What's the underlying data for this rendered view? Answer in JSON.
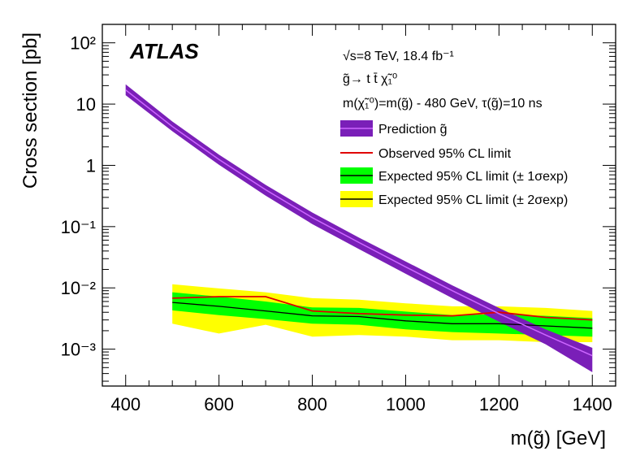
{
  "chart_data": {
    "type": "line",
    "brand": "ATLAS",
    "info_lines": [
      "√s=8 TeV, 18.4 fb⁻¹",
      "g̃→ t t̄ χ̃₁⁰",
      "m(χ̃₁⁰)=m(g̃) - 480 GeV, τ(g̃)=10 ns"
    ],
    "xlabel": "m(g̃) [GeV]",
    "ylabel": "Cross section [pb]",
    "xlim": [
      350,
      1450
    ],
    "ylim": [
      0.00025,
      200
    ],
    "yscale": "log",
    "x_ticks": [
      400,
      600,
      800,
      1000,
      1200,
      1400
    ],
    "y_ticks": [
      {
        "value": 100,
        "label": "10²"
      },
      {
        "value": 10,
        "label": "10"
      },
      {
        "value": 1,
        "label": "1"
      },
      {
        "value": 0.1,
        "label": "10⁻¹"
      },
      {
        "value": 0.01,
        "label": "10⁻²"
      },
      {
        "value": 0.001,
        "label": "10⁻³"
      }
    ],
    "colors": {
      "prediction_band": "#7a1fb8",
      "prediction_line": "#cc66ff",
      "observed": "#e00000",
      "expected": "#000000",
      "one_sigma": "#00ff00",
      "two_sigma": "#ffff00"
    },
    "legend": [
      {
        "key": "prediction",
        "label": "Prediction g̃"
      },
      {
        "key": "observed",
        "label": "Observed 95% CL limit"
      },
      {
        "key": "one_sigma",
        "label": "Expected 95% CL limit (± 1σexp)"
      },
      {
        "key": "two_sigma",
        "label": "Expected 95% CL limit (± 2σexp)"
      }
    ],
    "series": [
      {
        "key": "prediction",
        "x": [
          400,
          500,
          600,
          700,
          800,
          900,
          1000,
          1100,
          1200,
          1300,
          1400
        ],
        "central": [
          17,
          4.3,
          1.25,
          0.4,
          0.14,
          0.055,
          0.022,
          0.009,
          0.0038,
          0.0017,
          0.00078
        ],
        "low": [
          14,
          3.6,
          1.02,
          0.32,
          0.11,
          0.043,
          0.017,
          0.0068,
          0.0028,
          0.0012,
          0.00042
        ],
        "high": [
          21,
          5.2,
          1.5,
          0.48,
          0.17,
          0.066,
          0.027,
          0.011,
          0.0047,
          0.0021,
          0.00105
        ]
      },
      {
        "key": "observed",
        "x": [
          500,
          600,
          700,
          800,
          900,
          1000,
          1100,
          1200,
          1300,
          1400
        ],
        "values": [
          0.0068,
          0.0072,
          0.0072,
          0.0042,
          0.0038,
          0.0036,
          0.0035,
          0.004,
          0.0033,
          0.003
        ]
      },
      {
        "key": "expected",
        "x": [
          500,
          600,
          700,
          800,
          900,
          1000,
          1100,
          1200,
          1300,
          1400
        ],
        "values": [
          0.0058,
          0.005,
          0.0042,
          0.0035,
          0.0034,
          0.0029,
          0.0026,
          0.0026,
          0.0024,
          0.0022
        ],
        "one_sigma_low": [
          0.0043,
          0.0036,
          0.0031,
          0.0026,
          0.0025,
          0.0021,
          0.0019,
          0.0018,
          0.0017,
          0.0016
        ],
        "one_sigma_high": [
          0.0085,
          0.0072,
          0.006,
          0.0048,
          0.0047,
          0.0041,
          0.0036,
          0.0037,
          0.0035,
          0.0032
        ],
        "two_sigma_low": [
          0.0026,
          0.0018,
          0.0025,
          0.0016,
          0.0017,
          0.0016,
          0.0014,
          0.0014,
          0.0013,
          0.0013
        ],
        "two_sigma_high": [
          0.0115,
          0.0098,
          0.0085,
          0.0068,
          0.0064,
          0.0056,
          0.005,
          0.005,
          0.0047,
          0.0042
        ]
      }
    ]
  }
}
